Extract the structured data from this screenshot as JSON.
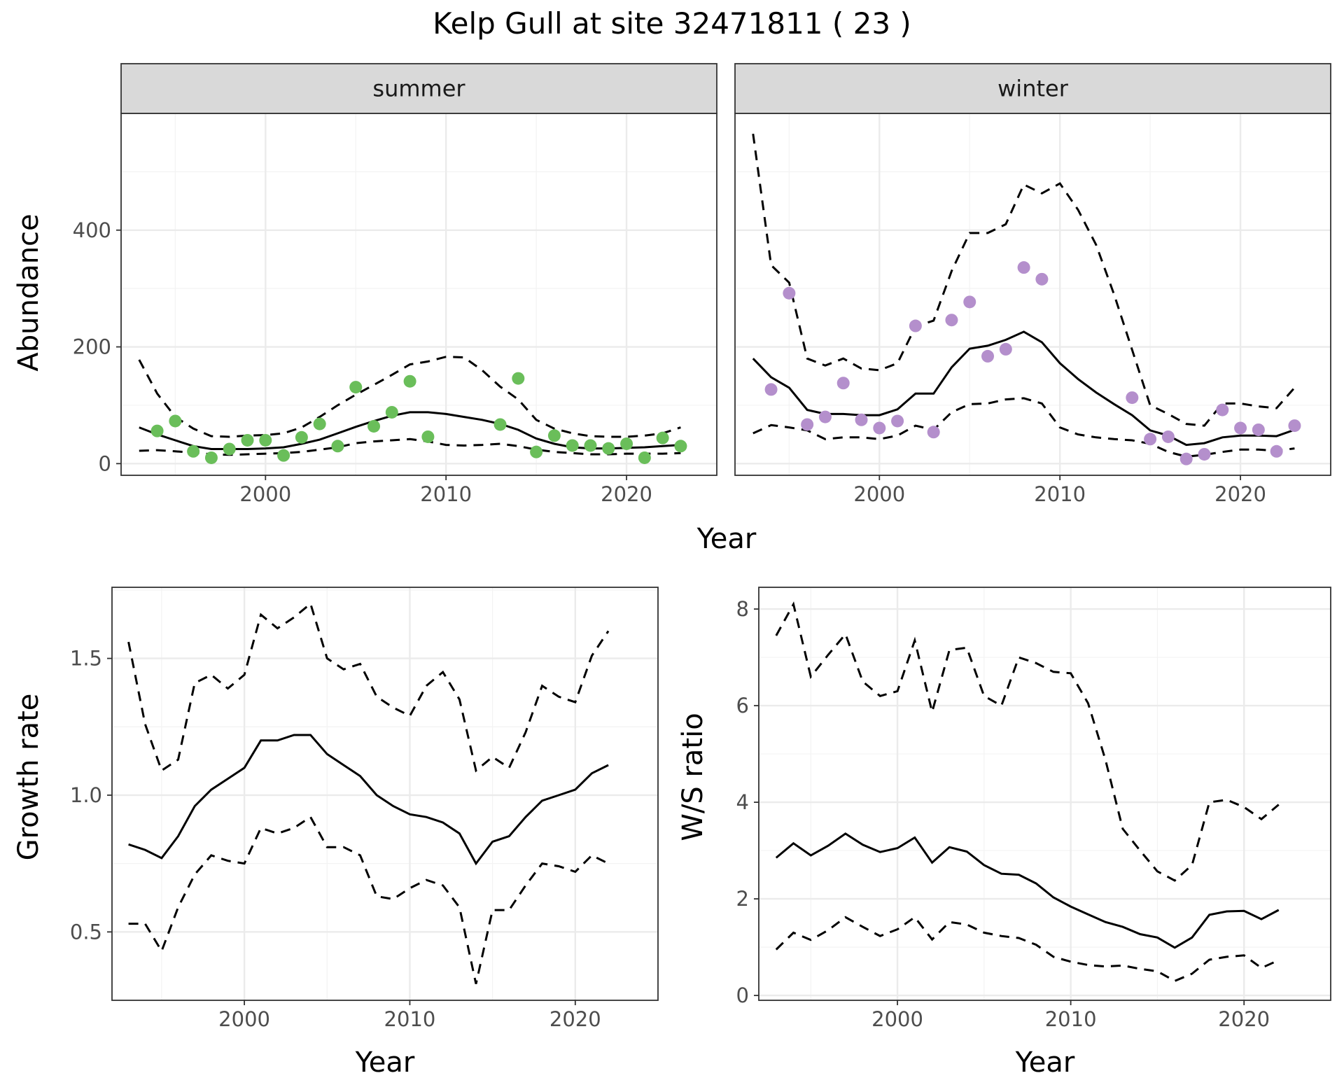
{
  "title": "Kelp Gull at site 32471811 ( 23 )",
  "colors": {
    "summer": "#6abe5a",
    "winter": "#b48fcc",
    "line": "#000000"
  },
  "chart_data": [
    {
      "id": "abundance",
      "type": "line+scatter",
      "facets": [
        "summer",
        "winter"
      ],
      "xlabel": "Year",
      "ylabel": "Abundance",
      "xlim": [
        1992,
        2025
      ],
      "ylim": [
        -20,
        600
      ],
      "x_ticks": [
        2000,
        2010,
        2020
      ],
      "y_ticks": [
        0,
        200,
        400
      ],
      "panels": [
        {
          "facet": "summer",
          "points": {
            "x": [
              1994,
              1995,
              1996,
              1997,
              1998,
              1999,
              2000,
              2001,
              2002,
              2003,
              2004,
              2005,
              2006,
              2007,
              2008,
              2009,
              2013,
              2014,
              2015,
              2016,
              2017,
              2018,
              2019,
              2020,
              2021,
              2022,
              2023
            ],
            "y": [
              56,
              73,
              21,
              10,
              25,
              40,
              40,
              14,
              45,
              68,
              30,
              131,
              64,
              88,
              141,
              46,
              67,
              146,
              20,
              48,
              31,
              31,
              26,
              34,
              10,
              44,
              30
            ]
          },
          "fit": {
            "x": [
              1993,
              1994,
              1995,
              1996,
              1997,
              1998,
              1999,
              2000,
              2001,
              2002,
              2003,
              2004,
              2005,
              2006,
              2007,
              2008,
              2009,
              2010,
              2011,
              2012,
              2013,
              2014,
              2015,
              2016,
              2017,
              2018,
              2019,
              2020,
              2021,
              2022,
              2023
            ],
            "mean": [
              62,
              50,
              40,
              30,
              25,
              25,
              25,
              26,
              28,
              34,
              41,
              52,
              63,
              73,
              82,
              88,
              88,
              85,
              80,
              75,
              68,
              58,
              43,
              34,
              28,
              26,
              26,
              27,
              28,
              30,
              32
            ],
            "lower": [
              22,
              23,
              21,
              19,
              16,
              15,
              16,
              17,
              18,
              20,
              24,
              28,
              35,
              38,
              40,
              42,
              38,
              32,
              31,
              32,
              34,
              30,
              24,
              20,
              18,
              16,
              16,
              17,
              17,
              17,
              18
            ],
            "upper": [
              178,
              120,
              80,
              60,
              47,
              46,
              48,
              49,
              52,
              62,
              80,
              100,
              118,
              135,
              152,
              170,
              175,
              183,
              182,
              160,
              132,
              110,
              75,
              60,
              52,
              47,
              46,
              46,
              48,
              52,
              62
            ]
          }
        },
        {
          "facet": "winter",
          "points": {
            "x": [
              1994,
              1995,
              1996,
              1997,
              1998,
              1999,
              2000,
              2001,
              2002,
              2003,
              2004,
              2005,
              2006,
              2007,
              2008,
              2009,
              2014,
              2015,
              2016,
              2017,
              2018,
              2019,
              2020,
              2021,
              2022,
              2023
            ],
            "y": [
              127,
              292,
              67,
              80,
              138,
              75,
              61,
              73,
              236,
              54,
              246,
              277,
              184,
              196,
              336,
              316,
              113,
              42,
              46,
              8,
              16,
              92,
              61,
              58,
              21,
              65
            ]
          },
          "fit": {
            "x": [
              1993,
              1994,
              1995,
              1996,
              1997,
              1998,
              1999,
              2000,
              2001,
              2002,
              2003,
              2004,
              2005,
              2006,
              2007,
              2008,
              2009,
              2010,
              2011,
              2012,
              2013,
              2014,
              2015,
              2016,
              2017,
              2018,
              2019,
              2020,
              2021,
              2022,
              2023
            ],
            "mean": [
              180,
              148,
              130,
              92,
              85,
              85,
              83,
              83,
              93,
              120,
              120,
              165,
              197,
              202,
              212,
              226,
              208,
              172,
              145,
              122,
              102,
              83,
              57,
              48,
              32,
              35,
              45,
              48,
              48,
              47,
              58
            ],
            "lower": [
              52,
              66,
              62,
              57,
              42,
              45,
              45,
              42,
              48,
              65,
              58,
              88,
              102,
              103,
              110,
              112,
              103,
              62,
              50,
              45,
              42,
              40,
              34,
              20,
              12,
              15,
              20,
              24,
              24,
              22,
              26
            ],
            "upper": [
              565,
              340,
              310,
              180,
              168,
              180,
              163,
              160,
              172,
              235,
              245,
              330,
              395,
              395,
              410,
              478,
              463,
              480,
              435,
              375,
              290,
              195,
              100,
              85,
              68,
              65,
              103,
              103,
              98,
              95,
              130
            ]
          }
        }
      ]
    },
    {
      "id": "growth",
      "type": "line",
      "xlabel": "Year",
      "ylabel": "Growth rate",
      "xlim": [
        1992,
        2025
      ],
      "ylim": [
        0.25,
        1.76
      ],
      "x_ticks": [
        2000,
        2010,
        2020
      ],
      "y_ticks": [
        0.5,
        1.0,
        1.5
      ],
      "x": [
        1993,
        1994,
        1995,
        1996,
        1997,
        1998,
        1999,
        2000,
        2001,
        2002,
        2003,
        2004,
        2005,
        2006,
        2007,
        2008,
        2009,
        2010,
        2011,
        2012,
        2013,
        2014,
        2015,
        2016,
        2017,
        2018,
        2019,
        2020,
        2021,
        2022
      ],
      "mean": [
        0.82,
        0.8,
        0.77,
        0.85,
        0.96,
        1.02,
        1.06,
        1.1,
        1.2,
        1.2,
        1.22,
        1.22,
        1.15,
        1.11,
        1.07,
        1.0,
        0.96,
        0.93,
        0.92,
        0.9,
        0.86,
        0.75,
        0.83,
        0.85,
        0.92,
        0.98,
        1.0,
        1.02,
        1.08,
        1.11
      ],
      "lower": [
        0.53,
        0.53,
        0.43,
        0.59,
        0.71,
        0.78,
        0.76,
        0.75,
        0.88,
        0.86,
        0.88,
        0.92,
        0.81,
        0.81,
        0.78,
        0.63,
        0.62,
        0.66,
        0.69,
        0.67,
        0.59,
        0.31,
        0.58,
        0.58,
        0.67,
        0.75,
        0.74,
        0.72,
        0.78,
        0.75
      ],
      "upper": [
        1.56,
        1.26,
        1.09,
        1.13,
        1.41,
        1.44,
        1.39,
        1.44,
        1.66,
        1.61,
        1.65,
        1.7,
        1.5,
        1.46,
        1.48,
        1.36,
        1.32,
        1.29,
        1.4,
        1.45,
        1.35,
        1.09,
        1.14,
        1.1,
        1.23,
        1.4,
        1.36,
        1.34,
        1.51,
        1.6
      ]
    },
    {
      "id": "ws_ratio",
      "type": "line",
      "xlabel": "Year",
      "ylabel": "W/S ratio",
      "xlim": [
        1992,
        2025
      ],
      "ylim": [
        -0.1,
        8.45
      ],
      "x_ticks": [
        2000,
        2010,
        2020
      ],
      "y_ticks": [
        0,
        2,
        4,
        6,
        8
      ],
      "x": [
        1993,
        1994,
        1995,
        1996,
        1997,
        1998,
        1999,
        2000,
        2001,
        2002,
        2003,
        2004,
        2005,
        2006,
        2007,
        2008,
        2009,
        2010,
        2011,
        2012,
        2013,
        2014,
        2015,
        2016,
        2017,
        2018,
        2019,
        2020,
        2021,
        2022
      ],
      "mean": [
        2.85,
        3.15,
        2.9,
        3.1,
        3.35,
        3.12,
        2.97,
        3.05,
        3.27,
        2.75,
        3.07,
        2.98,
        2.7,
        2.52,
        2.5,
        2.32,
        2.03,
        1.84,
        1.68,
        1.52,
        1.42,
        1.27,
        1.2,
        0.99,
        1.2,
        1.67,
        1.74,
        1.75,
        1.58,
        1.77
      ],
      "lower": [
        0.95,
        1.3,
        1.15,
        1.35,
        1.62,
        1.42,
        1.23,
        1.37,
        1.62,
        1.16,
        1.52,
        1.47,
        1.3,
        1.23,
        1.19,
        1.05,
        0.8,
        0.7,
        0.63,
        0.6,
        0.62,
        0.55,
        0.5,
        0.3,
        0.45,
        0.74,
        0.8,
        0.83,
        0.57,
        0.73
      ],
      "upper": [
        7.45,
        8.1,
        6.6,
        7.05,
        7.48,
        6.5,
        6.2,
        6.3,
        7.35,
        5.87,
        7.15,
        7.2,
        6.2,
        6.0,
        7.0,
        6.88,
        6.7,
        6.67,
        6.05,
        4.88,
        3.45,
        3.0,
        2.57,
        2.38,
        2.7,
        4.0,
        4.05,
        3.9,
        3.65,
        3.95
      ]
    }
  ]
}
